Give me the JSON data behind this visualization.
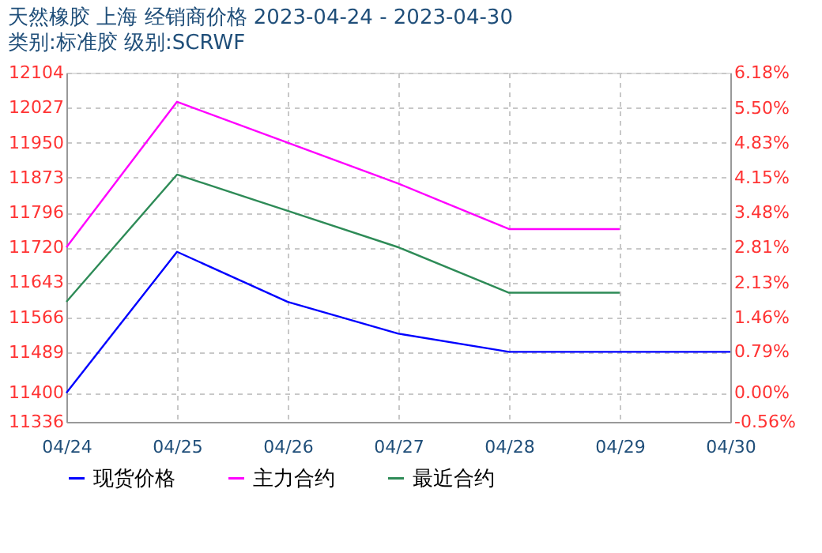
{
  "chart_data": {
    "type": "line",
    "title": "天然橡胶 上海 经销商价格 2023-04-24 - 2023-04-30",
    "subtitle": "类别:标准胶 级别:SCRWF",
    "categories": [
      "04/24",
      "04/25",
      "04/26",
      "04/27",
      "04/28",
      "04/29",
      "04/30"
    ],
    "series": [
      {
        "name": "现货价格",
        "color": "#0000ff",
        "values": [
          11400,
          11710,
          11600,
          11530,
          11490,
          11490,
          11490
        ]
      },
      {
        "name": "主力合约",
        "color": "#ff00ff",
        "values": [
          11720,
          12040,
          11950,
          11860,
          11760,
          11760,
          null
        ]
      },
      {
        "name": "最近合约",
        "color": "#2e8b57",
        "values": [
          11600,
          11880,
          11800,
          11720,
          11620,
          11620,
          null
        ]
      }
    ],
    "ylim": [
      11336,
      12104
    ],
    "yticks": [
      11336,
      11400,
      11489,
      11566,
      11643,
      11720,
      11796,
      11873,
      11950,
      12027,
      12104
    ],
    "y2lim": [
      -0.56,
      6.18
    ],
    "y2ticks": [
      {
        "value": -0.56,
        "label": "-0.56%"
      },
      {
        "value": 0,
        "label": "0.00%"
      },
      {
        "value": 0.79,
        "label": "0.79%"
      },
      {
        "value": 1.46,
        "label": "1.46%"
      },
      {
        "value": 2.13,
        "label": "2.13%"
      },
      {
        "value": 2.81,
        "label": "2.81%"
      },
      {
        "value": 3.48,
        "label": "3.48%"
      },
      {
        "value": 4.15,
        "label": "4.15%"
      },
      {
        "value": 4.83,
        "label": "4.83%"
      },
      {
        "value": 5.5,
        "label": "5.50%"
      },
      {
        "value": 6.18,
        "label": "6.18%"
      }
    ],
    "grid": true,
    "legend": "bottom",
    "marker": "none",
    "line_style": "solid"
  }
}
